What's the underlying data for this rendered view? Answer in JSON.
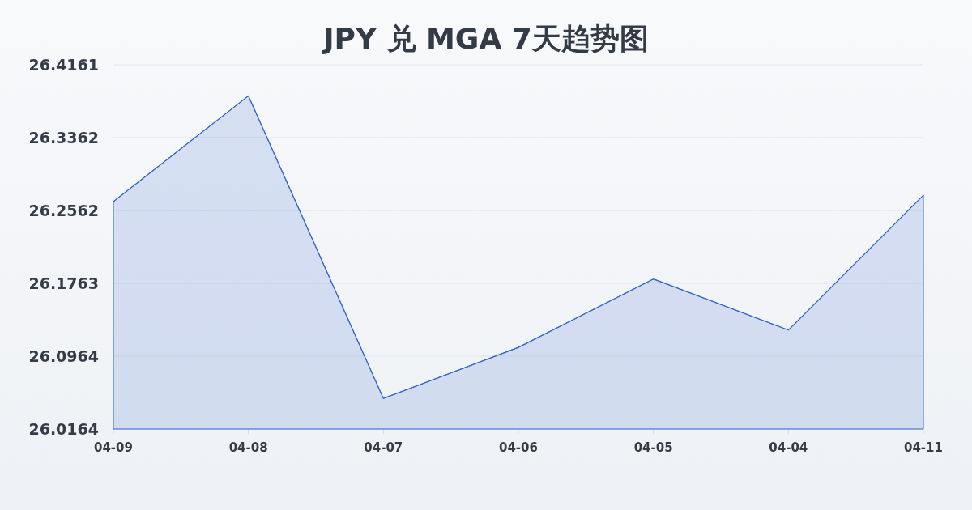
{
  "chart_data": {
    "type": "area",
    "title": "JPY 兑 MGA 7天趋势图",
    "categories": [
      "04-09",
      "04-08",
      "04-07",
      "04-06",
      "04-05",
      "04-04",
      "04-11"
    ],
    "values": [
      26.266,
      26.382,
      26.05,
      26.106,
      26.181,
      26.125,
      26.273
    ],
    "color": "#3366cc",
    "ylim": [
      26.0164,
      26.4161
    ],
    "yticks": [
      26.0164,
      26.0964,
      26.1763,
      26.2562,
      26.3362,
      26.4161
    ],
    "grid": "y"
  }
}
